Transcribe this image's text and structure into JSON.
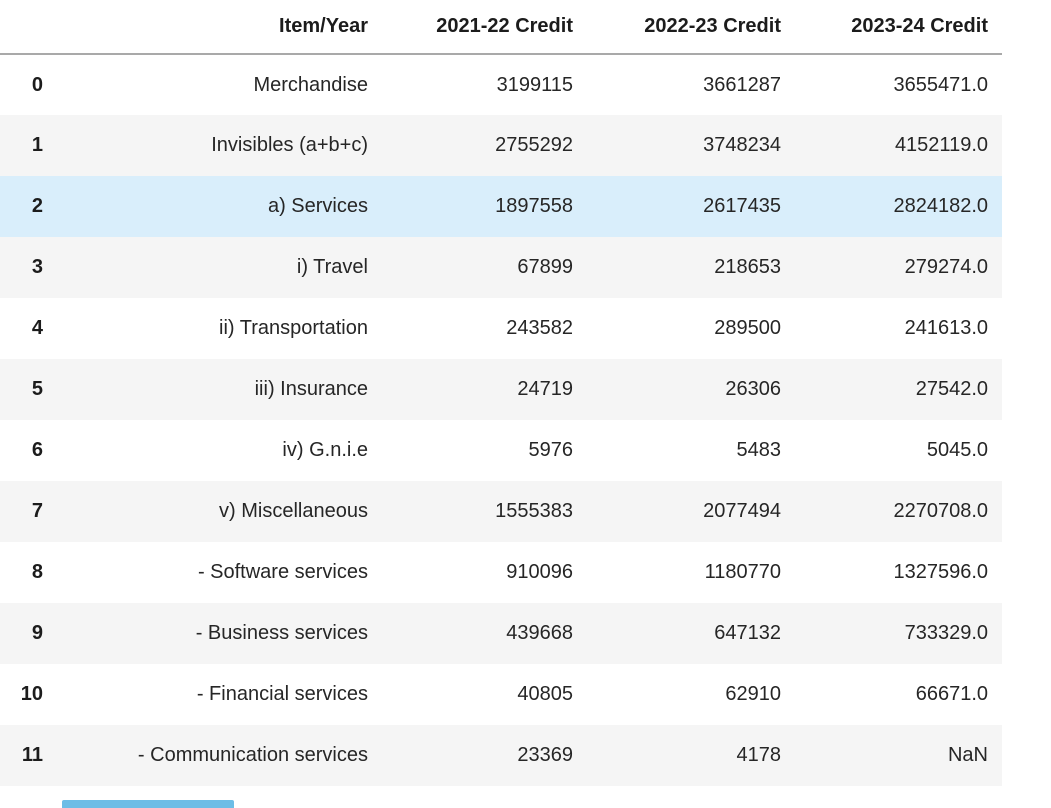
{
  "chart_data": {
    "type": "table",
    "columns": [
      "Item/Year",
      "2021-22 Credit",
      "2022-23 Credit",
      "2023-24 Credit"
    ],
    "index": [
      "0",
      "1",
      "2",
      "3",
      "4",
      "5",
      "6",
      "7",
      "8",
      "9",
      "10",
      "11"
    ],
    "rows": [
      [
        "Merchandise",
        "3199115",
        "3661287",
        "3655471.0"
      ],
      [
        "Invisibles (a+b+c)",
        "2755292",
        "3748234",
        "4152119.0"
      ],
      [
        "a) Services",
        "1897558",
        "2617435",
        "2824182.0"
      ],
      [
        "i) Travel",
        "67899",
        "218653",
        "279274.0"
      ],
      [
        "ii) Transportation",
        "243582",
        "289500",
        "241613.0"
      ],
      [
        "iii) Insurance",
        "24719",
        "26306",
        "27542.0"
      ],
      [
        "iv) G.n.i.e",
        "5976",
        "5483",
        "5045.0"
      ],
      [
        "v) Miscellaneous",
        "1555383",
        "2077494",
        "2270708.0"
      ],
      [
        "- Software services",
        "910096",
        "1180770",
        "1327596.0"
      ],
      [
        "- Business services",
        "439668",
        "647132",
        "733329.0"
      ],
      [
        "- Financial services",
        "40805",
        "62910",
        "66671.0"
      ],
      [
        "- Communication services",
        "23369",
        "4178",
        "NaN"
      ]
    ],
    "highlighted_row": 2,
    "layout": {
      "stripe_color": "#f5f5f5",
      "highlight_color": "#d9eefb",
      "header_border_color": "#a9a9a9",
      "text_color": "#262626",
      "cutoff_bar_color": "#6cbde6"
    }
  }
}
